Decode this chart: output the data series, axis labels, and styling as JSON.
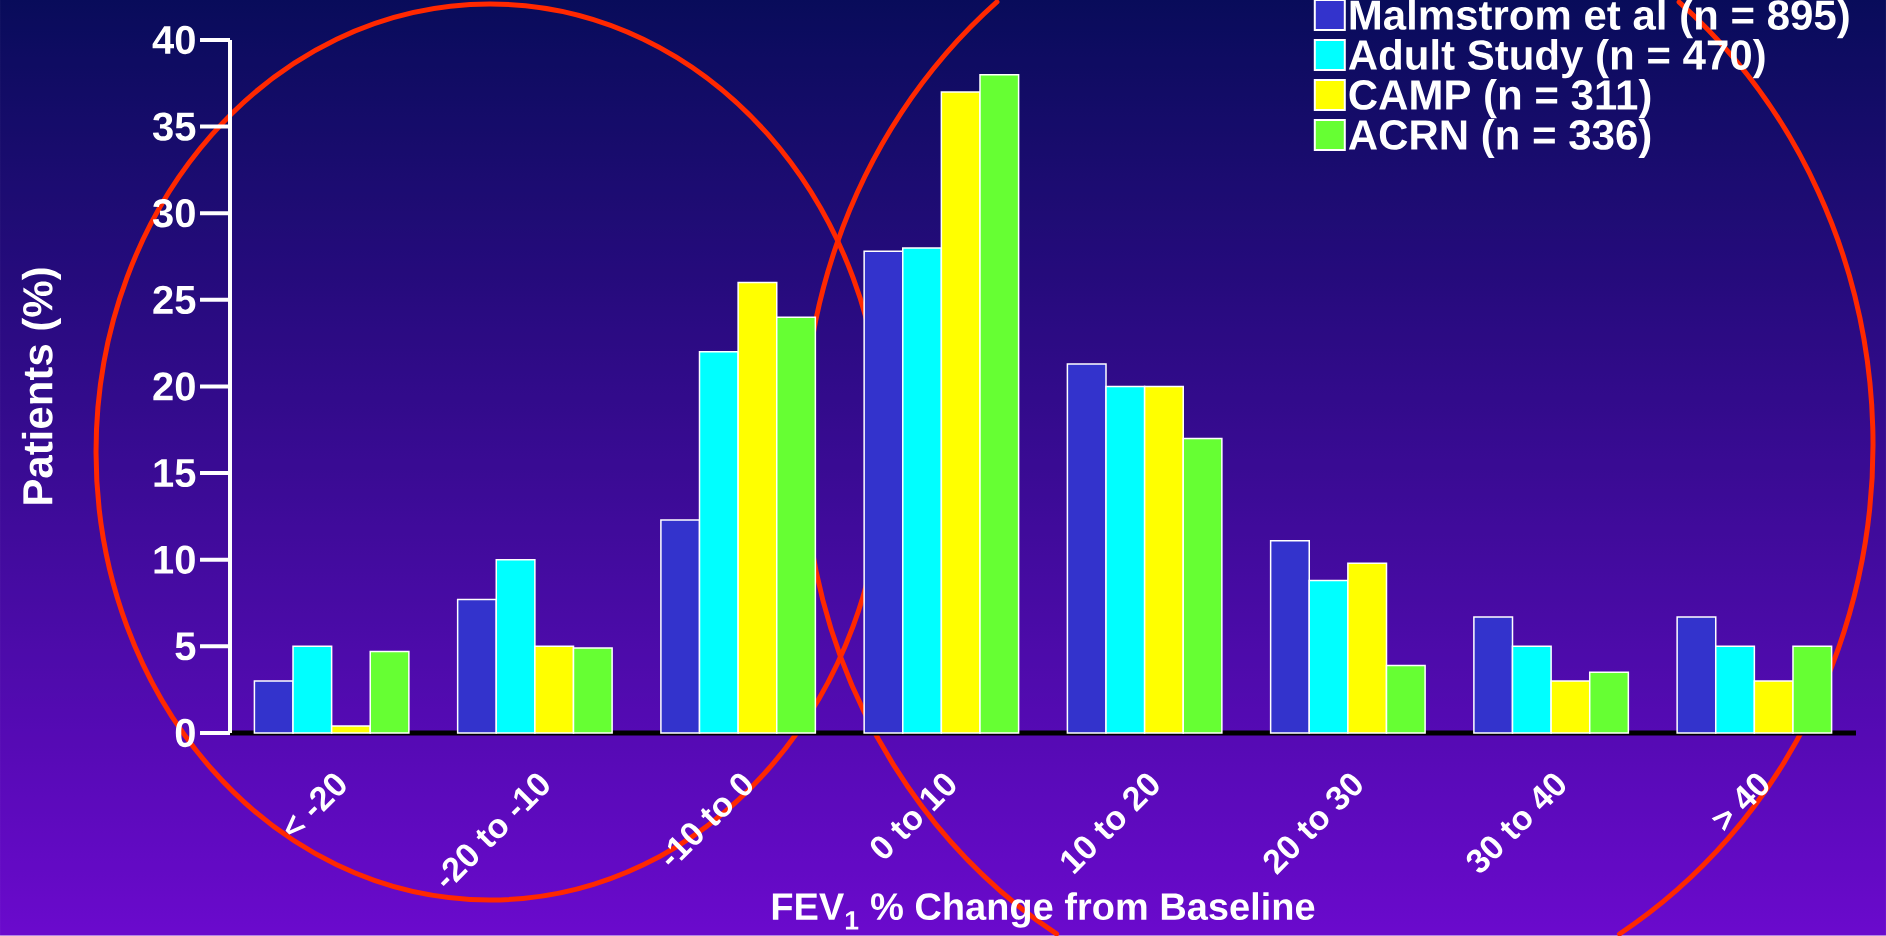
{
  "chart_data": {
    "type": "bar",
    "xlabel": "FEV$_{1}$ % Change from Baseline",
    "ylabel": "Patients (%)",
    "categories": [
      "< -20",
      "-20 to -10",
      "-10 to 0",
      "0 to 10",
      "10 to 20",
      "20 to 30",
      "30 to 40",
      "> 40"
    ],
    "series": [
      {
        "name": "Malmstrom et al (n = 895)",
        "color": "#3333cc",
        "values": [
          3,
          7.7,
          12.3,
          27.8,
          21.3,
          11.1,
          6.7,
          6.7
        ]
      },
      {
        "name": "Adult Study (n = 470)",
        "color": "#00ffff",
        "values": [
          5,
          10,
          22,
          28,
          20,
          8.8,
          5,
          5
        ]
      },
      {
        "name": "CAMP (n = 311)",
        "color": "#ffff00",
        "values": [
          0.4,
          5,
          26,
          37,
          20,
          9.8,
          3,
          3
        ]
      },
      {
        "name": "ACRN (n = 336)",
        "color": "#66ff33",
        "values": [
          4.7,
          4.9,
          24,
          38,
          17,
          3.9,
          3.5,
          5
        ]
      }
    ],
    "ylim": [
      0,
      40
    ],
    "yticks": [
      0,
      5,
      10,
      15,
      20,
      25,
      30,
      35,
      40
    ],
    "grid": false,
    "legend": "top right"
  }
}
